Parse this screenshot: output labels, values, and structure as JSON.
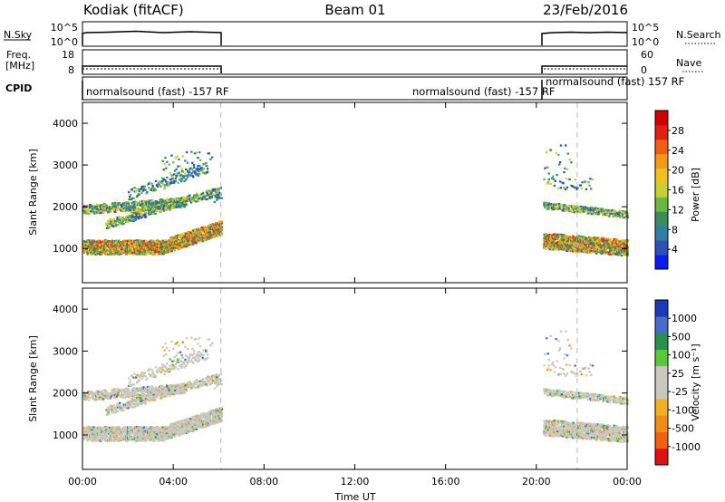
{
  "header": {
    "radar": "Kodiak (fitACF)",
    "beam": "Beam 01",
    "date": "23/Feb/2016"
  },
  "nsky_panel": {
    "left_label": "N.Sky",
    "right_label": "N.Search",
    "left_ticks": [
      "10^5",
      "10^0"
    ],
    "right_ticks": [
      "10^5",
      "10^0"
    ]
  },
  "freq_panel": {
    "left_label_1": "Freq.",
    "left_label_2": "[MHz]",
    "right_label": "Nave",
    "left_ticks": [
      "18",
      "8"
    ],
    "right_ticks": [
      "60",
      "0"
    ]
  },
  "cpid_panel": {
    "label": "CPID",
    "entries": [
      {
        "text": "normalsound (fast) -157 RF",
        "start_hour": 0.0
      },
      {
        "text": "normalsound (fast) -157 RF",
        "start_hour": 20.15
      },
      {
        "text": "normalsound (fast) 157 RF",
        "start_hour": 20.15
      }
    ]
  },
  "x_axis": {
    "label": "Time UT",
    "ticks": [
      "00:00",
      "04:00",
      "08:00",
      "12:00",
      "16:00",
      "20:00",
      "00:00"
    ]
  },
  "chart_data": [
    {
      "type": "heatmap",
      "ylabel": "Slant Range [km]",
      "yticks": [
        "1000",
        "2000",
        "3000",
        "4000"
      ],
      "colorbar": {
        "label": "Power [dB]",
        "ticks": [
          "4",
          "8",
          "12",
          "16",
          "20",
          "24",
          "28"
        ],
        "colors": [
          "#0a1cf0",
          "#2b50b8",
          "#2f7fa3",
          "#3a8c5a",
          "#6ab840",
          "#c8d030",
          "#f0c020",
          "#f59a18",
          "#f06010",
          "#e02010",
          "#d00000"
        ]
      },
      "xlim_hours": [
        0,
        24
      ],
      "ylim_km": [
        180,
        4500
      ],
      "data_gap_hours": [
        6.1,
        20.3
      ],
      "vertical_marker_hours": [
        6.1,
        21.8
      ]
    },
    {
      "type": "heatmap",
      "ylabel": "Slant Range [km]",
      "yticks": [
        "1000",
        "2000",
        "3000",
        "4000"
      ],
      "colorbar": {
        "label": "Velocity [m s⁻¹]",
        "ticks": [
          "1000",
          "500",
          "100",
          "25",
          "-25",
          "-100",
          "-500",
          "-1000"
        ],
        "colors": [
          "#1a3ab8",
          "#4a6cc8",
          "#2a9050",
          "#58c838",
          "#c8c8c0",
          "#c8c8c0",
          "#f0b020",
          "#f08c18",
          "#f06010",
          "#e01010"
        ]
      },
      "xlim_hours": [
        0,
        24
      ],
      "ylim_km": [
        180,
        4500
      ],
      "data_gap_hours": [
        6.1,
        20.3
      ],
      "vertical_marker_hours": [
        6.1,
        21.8
      ]
    }
  ]
}
